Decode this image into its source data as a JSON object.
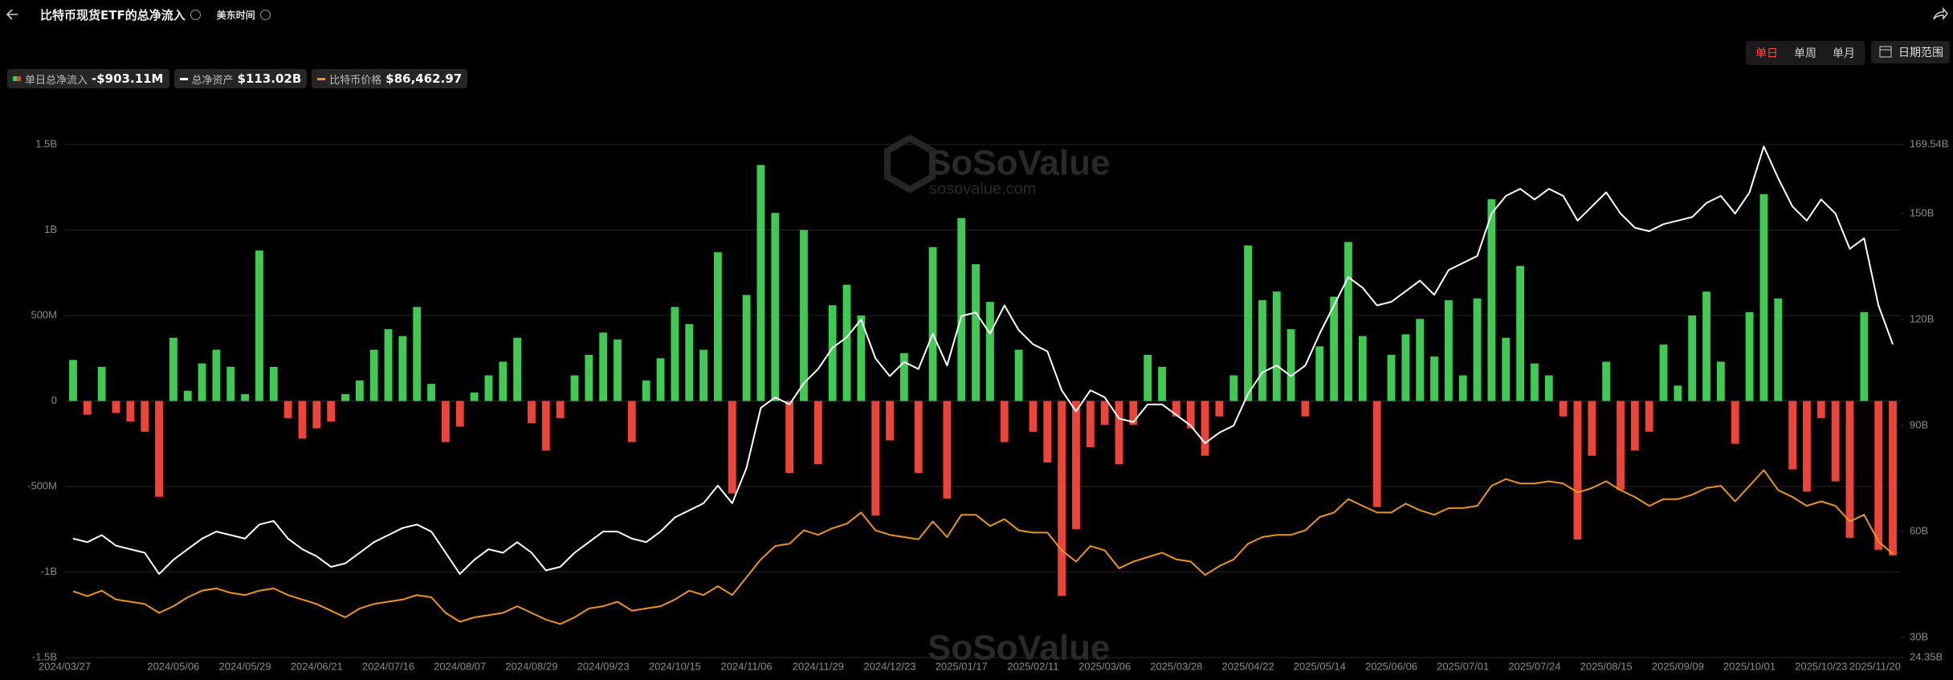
{
  "ui": {
    "title": "比特币现货ETF的总净流入",
    "timezone": "美东时间",
    "tabs": [
      "单日",
      "单周",
      "单月"
    ],
    "date_range": "日期范围",
    "watermark": "SoSoValue",
    "watermark_url": "sosovalue.com"
  },
  "chart_data": {
    "type": "bar",
    "grid": true,
    "categories": [
      "2024/03/27",
      null,
      null,
      null,
      null,
      null,
      null,
      "2024/05/06",
      null,
      null,
      null,
      null,
      "2024/05/29",
      null,
      null,
      null,
      null,
      "2024/06/21",
      null,
      null,
      null,
      null,
      "2024/07/16",
      null,
      null,
      null,
      null,
      "2024/08/07",
      null,
      null,
      null,
      null,
      "2024/08/29",
      null,
      null,
      null,
      null,
      "2024/09/23",
      null,
      null,
      null,
      null,
      "2024/10/15",
      null,
      null,
      null,
      null,
      "2024/11/06",
      null,
      null,
      null,
      null,
      "2024/11/29",
      null,
      null,
      null,
      null,
      "2024/12/23",
      null,
      null,
      null,
      null,
      "2025/01/17",
      null,
      null,
      null,
      null,
      "2025/02/11",
      null,
      null,
      null,
      null,
      "2025/03/06",
      null,
      null,
      null,
      null,
      "2025/03/28",
      null,
      null,
      null,
      null,
      "2025/04/22",
      null,
      null,
      null,
      null,
      "2025/05/14",
      null,
      null,
      null,
      null,
      "2025/06/06",
      null,
      null,
      null,
      null,
      "2025/07/01",
      null,
      null,
      null,
      null,
      "2025/07/24",
      null,
      null,
      null,
      null,
      "2025/08/15",
      null,
      null,
      null,
      null,
      "2025/09/09",
      null,
      null,
      null,
      null,
      "2025/10/01",
      null,
      null,
      null,
      null,
      "2025/10/23",
      null,
      null,
      null,
      null,
      "2025/11/20"
    ],
    "ylim": [
      -1500,
      1500
    ],
    "yticks": [
      {
        "value": -1500,
        "label": "-1.5B"
      },
      {
        "value": -1000,
        "label": "-1B"
      },
      {
        "value": -500,
        "label": "-500M"
      },
      0,
      {
        "value": 500,
        "label": "500M"
      },
      {
        "value": 1000,
        "label": "1B"
      },
      {
        "value": 1500,
        "label": "1.5B"
      }
    ],
    "y2lim": [
      24.35,
      169.54
    ],
    "y2ticks": [
      {
        "value": 24.35,
        "label": "24.35B"
      },
      {
        "value": 30,
        "label": "30B"
      },
      {
        "value": 60,
        "label": "60B"
      },
      {
        "value": 90,
        "label": "90B"
      },
      {
        "value": 120,
        "label": "120B"
      },
      {
        "value": 150,
        "label": "150B"
      },
      {
        "value": 169.54,
        "label": "169.54B"
      }
    ],
    "y3lim": [
      40000,
      270000
    ],
    "series": [
      {
        "name": "单日总净流入",
        "type": "bar",
        "color": "#3fca52",
        "negative_color": "#ee4338",
        "current_label": "-$903.11M",
        "values": [
          240,
          -80,
          200,
          -70,
          -120,
          -180,
          -560,
          370,
          60,
          220,
          300,
          200,
          40,
          880,
          200,
          -100,
          -220,
          -160,
          -120,
          40,
          120,
          300,
          420,
          380,
          550,
          100,
          -240,
          -150,
          50,
          150,
          230,
          370,
          -130,
          -290,
          -100,
          150,
          270,
          400,
          360,
          -240,
          120,
          250,
          550,
          450,
          300,
          870,
          -540,
          620,
          1380,
          1100,
          -420,
          1000,
          -370,
          560,
          680,
          500,
          -670,
          -230,
          280,
          -420,
          900,
          -570,
          1070,
          800,
          580,
          -240,
          300,
          -180,
          -360,
          -1140,
          -750,
          -270,
          -140,
          -370,
          -140,
          270,
          200,
          -90,
          -160,
          -320,
          -90,
          150,
          910,
          590,
          640,
          420,
          -90,
          320,
          610,
          930,
          380,
          -620,
          270,
          390,
          480,
          260,
          590,
          150,
          600,
          1180,
          370,
          790,
          220,
          150,
          -90,
          -810,
          -320,
          230,
          -520,
          -290,
          -180,
          330,
          90,
          500,
          640,
          230,
          -250,
          520,
          1210,
          600,
          -400,
          -530,
          -100,
          -470,
          -800,
          520,
          -870,
          -903.11
        ]
      },
      {
        "name": "总净资产",
        "type": "line",
        "axis": "y2",
        "color": "#ffffff",
        "current_label": "$113.02B",
        "values": [
          58,
          57,
          59,
          56,
          55,
          54,
          48,
          52,
          55,
          58,
          60,
          59,
          58,
          62,
          63,
          58,
          55,
          53,
          50,
          51,
          54,
          57,
          59,
          61,
          62,
          60,
          54,
          48,
          52,
          55,
          54,
          57,
          54,
          49,
          50,
          54,
          57,
          60,
          60,
          58,
          57,
          60,
          64,
          66,
          68,
          73,
          68,
          78,
          95,
          98,
          96,
          102,
          106,
          112,
          115,
          120,
          109,
          104,
          108,
          106,
          116,
          107,
          121,
          122,
          116,
          124,
          117,
          113,
          111,
          100,
          94,
          100,
          98,
          92,
          91,
          96,
          96,
          93,
          90,
          85,
          88,
          90,
          99,
          105,
          107,
          104,
          107,
          116,
          124,
          132,
          129,
          124,
          125,
          128,
          131,
          127,
          134,
          136,
          138,
          150,
          155,
          157,
          154,
          157,
          155,
          148,
          152,
          156,
          150,
          146,
          145,
          147,
          148,
          149,
          153,
          155,
          150,
          156,
          169,
          160,
          152,
          148,
          154,
          150,
          140,
          143,
          124,
          113.02
        ]
      },
      {
        "name": "比特币价格",
        "type": "line",
        "axis": "y3",
        "color": "#e8961e",
        "current_label": "$86,462.97",
        "values": [
          69700,
          67500,
          70000,
          66000,
          65000,
          64000,
          60000,
          63000,
          67000,
          70000,
          71000,
          69000,
          68000,
          70000,
          71000,
          68000,
          66000,
          64000,
          61000,
          58000,
          62000,
          64000,
          65000,
          66000,
          68000,
          67000,
          60000,
          56000,
          58000,
          59000,
          60000,
          63000,
          60000,
          57000,
          55000,
          58000,
          62000,
          63000,
          65000,
          61000,
          62000,
          63000,
          66000,
          70000,
          68000,
          72000,
          68000,
          76000,
          84000,
          90000,
          91000,
          97000,
          95000,
          98000,
          100000,
          105000,
          97000,
          95000,
          94000,
          93000,
          101000,
          94000,
          104000,
          104000,
          99000,
          102000,
          97000,
          96000,
          96000,
          88000,
          83000,
          90000,
          88000,
          80000,
          83000,
          85000,
          87000,
          84000,
          83000,
          77000,
          81000,
          84000,
          91000,
          94000,
          95000,
          95000,
          97000,
          103000,
          105000,
          111000,
          108000,
          105000,
          105000,
          109000,
          106000,
          104000,
          107000,
          107000,
          108000,
          117000,
          120000,
          118000,
          118000,
          119000,
          118000,
          114000,
          116000,
          119000,
          115000,
          112000,
          108000,
          111000,
          111000,
          113000,
          116000,
          117000,
          110000,
          117000,
          124000,
          115000,
          112000,
          108000,
          110000,
          108000,
          101000,
          104000,
          92000,
          86462.97
        ]
      }
    ]
  }
}
